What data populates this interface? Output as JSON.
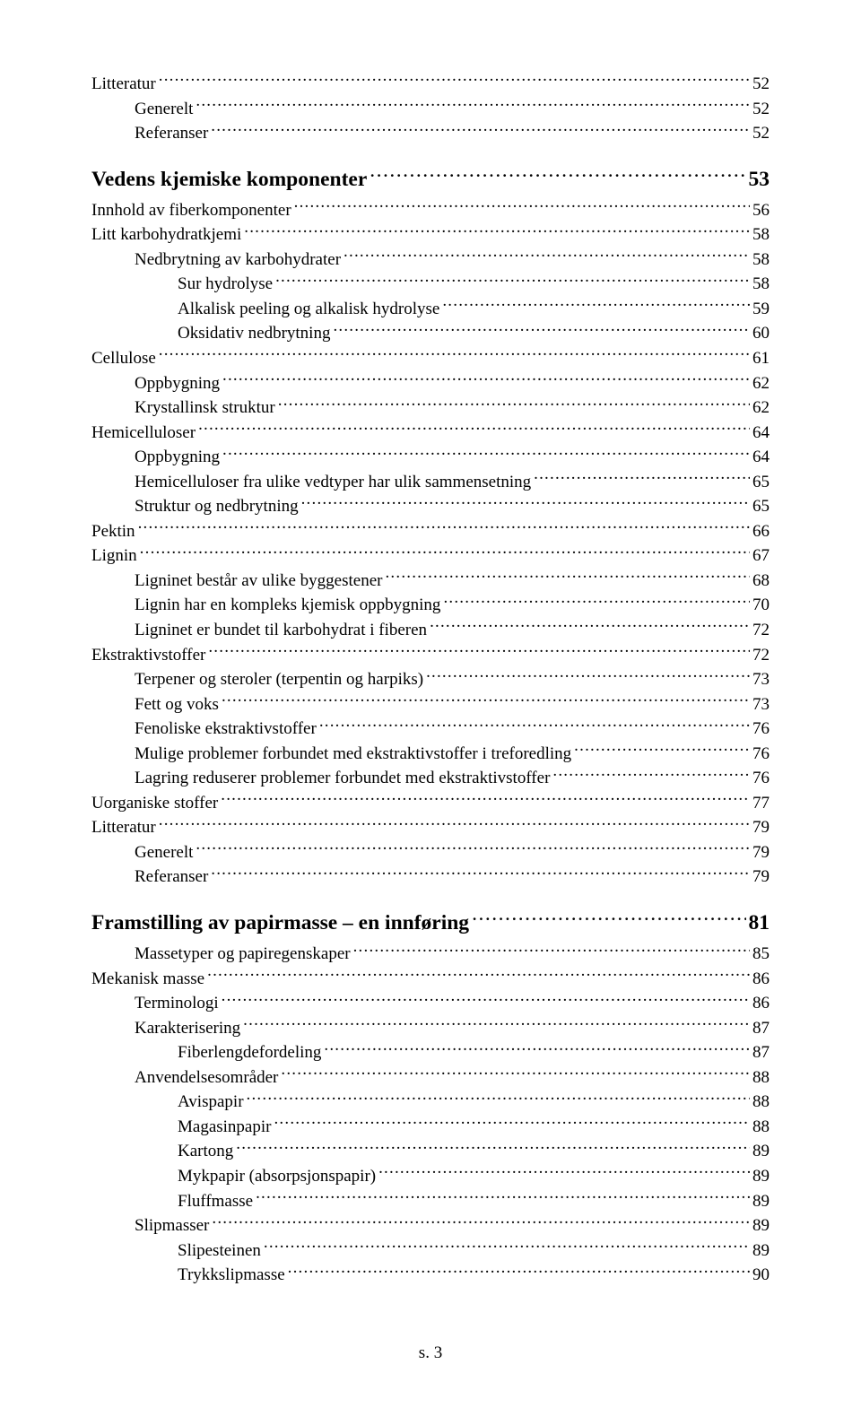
{
  "toc": [
    {
      "label": "Litteratur",
      "page": "52",
      "indent": 0,
      "bold": false
    },
    {
      "label": "Generelt",
      "page": "52",
      "indent": 1,
      "bold": false
    },
    {
      "label": "Referanser",
      "page": "52",
      "indent": 1,
      "bold": false
    },
    {
      "label": "Vedens kjemiske komponenter",
      "page": "53",
      "indent": 0,
      "bold": true
    },
    {
      "label": "Innhold av fiberkomponenter",
      "page": "56",
      "indent": 0,
      "bold": false
    },
    {
      "label": "Litt karbohydratkjemi",
      "page": "58",
      "indent": 0,
      "bold": false
    },
    {
      "label": "Nedbrytning av karbohydrater",
      "page": "58",
      "indent": 1,
      "bold": false
    },
    {
      "label": "Sur hydrolyse",
      "page": "58",
      "indent": 2,
      "bold": false
    },
    {
      "label": "Alkalisk peeling og alkalisk hydrolyse",
      "page": "59",
      "indent": 2,
      "bold": false
    },
    {
      "label": "Oksidativ nedbrytning",
      "page": "60",
      "indent": 2,
      "bold": false
    },
    {
      "label": "Cellulose",
      "page": "61",
      "indent": 0,
      "bold": false
    },
    {
      "label": "Oppbygning",
      "page": "62",
      "indent": 1,
      "bold": false
    },
    {
      "label": "Krystallinsk struktur",
      "page": "62",
      "indent": 1,
      "bold": false
    },
    {
      "label": "Hemicelluloser",
      "page": "64",
      "indent": 0,
      "bold": false
    },
    {
      "label": "Oppbygning",
      "page": "64",
      "indent": 1,
      "bold": false
    },
    {
      "label": "Hemicelluloser fra ulike vedtyper har ulik sammensetning",
      "page": "65",
      "indent": 1,
      "bold": false
    },
    {
      "label": "Struktur og nedbrytning",
      "page": "65",
      "indent": 1,
      "bold": false
    },
    {
      "label": "Pektin",
      "page": "66",
      "indent": 0,
      "bold": false
    },
    {
      "label": "Lignin",
      "page": "67",
      "indent": 0,
      "bold": false
    },
    {
      "label": "Ligninet består av ulike byggestener",
      "page": "68",
      "indent": 1,
      "bold": false
    },
    {
      "label": "Lignin har en kompleks kjemisk oppbygning",
      "page": "70",
      "indent": 1,
      "bold": false
    },
    {
      "label": "Ligninet er bundet til karbohydrat i fiberen",
      "page": "72",
      "indent": 1,
      "bold": false
    },
    {
      "label": "Ekstraktivstoffer",
      "page": "72",
      "indent": 0,
      "bold": false
    },
    {
      "label": "Terpener og steroler (terpentin og harpiks)",
      "page": "73",
      "indent": 1,
      "bold": false
    },
    {
      "label": "Fett og voks",
      "page": "73",
      "indent": 1,
      "bold": false
    },
    {
      "label": "Fenoliske ekstraktivstoffer",
      "page": "76",
      "indent": 1,
      "bold": false
    },
    {
      "label": "Mulige problemer forbundet med ekstraktivstoffer i treforedling",
      "page": "76",
      "indent": 1,
      "bold": false
    },
    {
      "label": "Lagring reduserer problemer forbundet med ekstraktivstoffer",
      "page": "76",
      "indent": 1,
      "bold": false
    },
    {
      "label": "Uorganiske stoffer",
      "page": "77",
      "indent": 0,
      "bold": false
    },
    {
      "label": "Litteratur",
      "page": "79",
      "indent": 0,
      "bold": false
    },
    {
      "label": "Generelt",
      "page": "79",
      "indent": 1,
      "bold": false
    },
    {
      "label": "Referanser",
      "page": "79",
      "indent": 1,
      "bold": false
    },
    {
      "label": "Framstilling av papirmasse – en innføring",
      "page": "81",
      "indent": 0,
      "bold": true
    },
    {
      "label": "Massetyper og papiregenskaper",
      "page": "85",
      "indent": 1,
      "bold": false
    },
    {
      "label": "Mekanisk masse",
      "page": "86",
      "indent": 0,
      "bold": false
    },
    {
      "label": "Terminologi",
      "page": "86",
      "indent": 1,
      "bold": false
    },
    {
      "label": "Karakterisering",
      "page": "87",
      "indent": 1,
      "bold": false
    },
    {
      "label": "Fiberlengdefordeling",
      "page": "87",
      "indent": 2,
      "bold": false
    },
    {
      "label": "Anvendelsesområder",
      "page": "88",
      "indent": 1,
      "bold": false
    },
    {
      "label": "Avispapir",
      "page": "88",
      "indent": 2,
      "bold": false
    },
    {
      "label": "Magasinpapir",
      "page": "88",
      "indent": 2,
      "bold": false
    },
    {
      "label": "Kartong",
      "page": "89",
      "indent": 2,
      "bold": false
    },
    {
      "label": "Mykpapir (absorpsjonspapir)",
      "page": "89",
      "indent": 2,
      "bold": false
    },
    {
      "label": "Fluffmasse",
      "page": "89",
      "indent": 2,
      "bold": false
    },
    {
      "label": "Slipmasser",
      "page": "89",
      "indent": 1,
      "bold": false
    },
    {
      "label": "Slipesteinen",
      "page": "89",
      "indent": 2,
      "bold": false
    },
    {
      "label": "Trykkslipmasse",
      "page": "90",
      "indent": 2,
      "bold": false
    }
  ],
  "footer": "s. 3"
}
